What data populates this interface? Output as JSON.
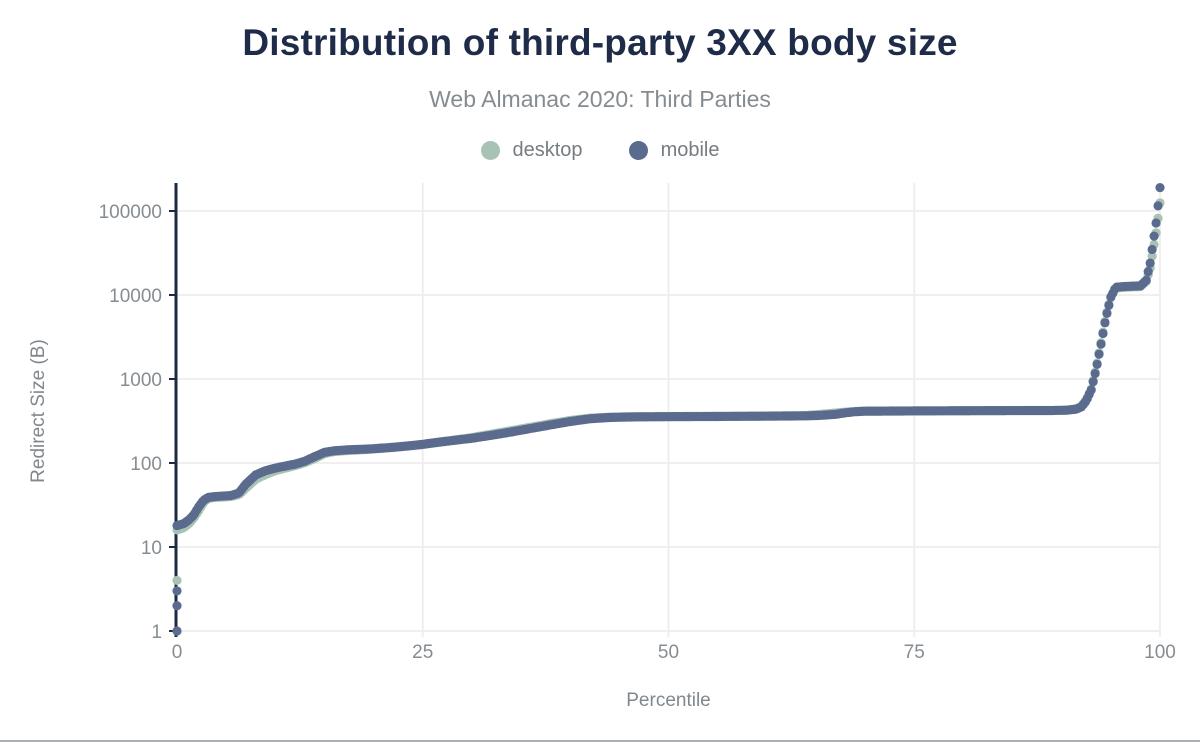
{
  "title": "Distribution of third-party 3XX body size",
  "subtitle": "Web Almanac 2020: Third Parties",
  "legend": [
    {
      "label": "desktop",
      "color": "#a8c3b4"
    },
    {
      "label": "mobile",
      "color": "#5a6b8e"
    }
  ],
  "chart_data": {
    "type": "scatter",
    "title": "Distribution of third-party 3XX body size",
    "subtitle": "Web Almanac 2020: Third Parties",
    "xlabel": "Percentile",
    "ylabel": "Redirect Size (B)",
    "x_ticks": [
      0,
      25,
      50,
      75,
      100
    ],
    "y_ticks": [
      1,
      10,
      100,
      1000,
      10000,
      100000
    ],
    "x_range": [
      0,
      100
    ],
    "y_scale": "log",
    "y_range": [
      1,
      230000
    ],
    "grid": true,
    "legend_position": "top",
    "dot_step": 0.2,
    "series": [
      {
        "name": "desktop",
        "color": "#a8c3b4"
      },
      {
        "name": "mobile",
        "color": "#5a6b8e"
      }
    ],
    "anchors_format": [
      "percentile",
      "desktop_bytes",
      "mobile_bytes"
    ],
    "anchors": [
      [
        0,
        16,
        18
      ],
      [
        0.7,
        17,
        19
      ],
      [
        1.2,
        19,
        21
      ],
      [
        1.7,
        22,
        24
      ],
      [
        2.2,
        27,
        30
      ],
      [
        2.7,
        34,
        36
      ],
      [
        3.2,
        38,
        39
      ],
      [
        4,
        39,
        40
      ],
      [
        5.5,
        40,
        41
      ],
      [
        6.3,
        42,
        44
      ],
      [
        7,
        50,
        56
      ],
      [
        8,
        64,
        72
      ],
      [
        9,
        73,
        81
      ],
      [
        10,
        81,
        87
      ],
      [
        11,
        87,
        92
      ],
      [
        12,
        93,
        97
      ],
      [
        13,
        101,
        105
      ],
      [
        14,
        113,
        119
      ],
      [
        15,
        129,
        134
      ],
      [
        16,
        137,
        140
      ],
      [
        17.5,
        141,
        144
      ],
      [
        19,
        144,
        146
      ],
      [
        20,
        147,
        148
      ],
      [
        22,
        153,
        154
      ],
      [
        24,
        161,
        162
      ],
      [
        25,
        166,
        167
      ],
      [
        27,
        180,
        179
      ],
      [
        29,
        193,
        191
      ],
      [
        30,
        201,
        197
      ],
      [
        32,
        221,
        214
      ],
      [
        34,
        243,
        234
      ],
      [
        36,
        267,
        258
      ],
      [
        38,
        294,
        284
      ],
      [
        40,
        321,
        312
      ],
      [
        42,
        342,
        336
      ],
      [
        44,
        352,
        348
      ],
      [
        46,
        356,
        353
      ],
      [
        50,
        358,
        356
      ],
      [
        55,
        360,
        358
      ],
      [
        60,
        363,
        361
      ],
      [
        64,
        368,
        364
      ],
      [
        65.5,
        380,
        369
      ],
      [
        67,
        394,
        380
      ],
      [
        68,
        404,
        396
      ],
      [
        69,
        411,
        408
      ],
      [
        70,
        414,
        414
      ],
      [
        75,
        417,
        417
      ],
      [
        80,
        419,
        419
      ],
      [
        85,
        421,
        421
      ],
      [
        89,
        422,
        422
      ],
      [
        90.5,
        426,
        425
      ],
      [
        91.5,
        443,
        438
      ],
      [
        92,
        475,
        465
      ],
      [
        92.5,
        565,
        550
      ],
      [
        93,
        760,
        740
      ],
      [
        93.5,
        1350,
        1300
      ],
      [
        94,
        2700,
        2600
      ],
      [
        94.5,
        5600,
        5400
      ],
      [
        95,
        9600,
        9400
      ],
      [
        95.5,
        12100,
        12400
      ],
      [
        96.5,
        12400,
        12650
      ],
      [
        98,
        12600,
        12850
      ],
      [
        98.6,
        14500,
        15000
      ],
      [
        99,
        21000,
        24000
      ],
      [
        99.3,
        34000,
        42000
      ],
      [
        99.6,
        55000,
        72000
      ],
      [
        99.8,
        82000,
        115000
      ],
      [
        100,
        125000,
        190000
      ]
    ],
    "outliers": {
      "desktop": [
        [
          0,
          4
        ]
      ],
      "mobile": [
        [
          0,
          1
        ],
        [
          0,
          2
        ],
        [
          0,
          3
        ]
      ]
    },
    "colors": {
      "desktop": "#a8c3b4",
      "mobile": "#5a6b8e",
      "axis": "#1b2b41",
      "grid": "#eeecec",
      "title": "#1e2b49",
      "tick_text": "#868d92",
      "bottom_rule": "#abb0b5"
    }
  }
}
